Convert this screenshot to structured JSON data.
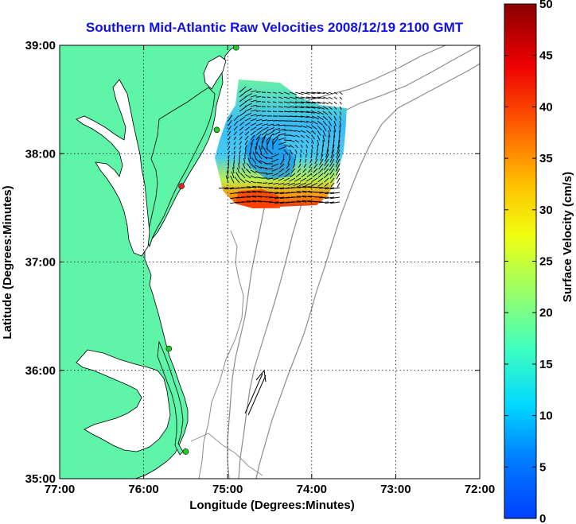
{
  "title": "Southern Mid-Atlantic Raw Velocities 2008/12/19 2100 GMT",
  "xlabel": "Longitude (Degrees:Minutes)",
  "ylabel": "Latitude (Degrees:Minutes)",
  "colorbar": {
    "label": "Surface Velocity (cm/s)",
    "min": 0,
    "max": 50,
    "ticks": [
      "0",
      "5",
      "10",
      "15",
      "20",
      "25",
      "30",
      "35",
      "40",
      "45",
      "50"
    ]
  },
  "x_ticks": [
    "77:00",
    "76:00",
    "75:00",
    "74:00",
    "73:00",
    "72:00"
  ],
  "y_ticks": [
    "39:00",
    "38:00",
    "37:00",
    "36:00",
    "35:00"
  ],
  "map": {
    "lon_range": [
      -77,
      -72
    ],
    "lat_range": [
      35,
      39
    ],
    "land_color": "#5ef5a8",
    "water_color": "#ffffff",
    "bathymetry_color": "#8c8c8c",
    "grid": "dotted"
  },
  "stations": [
    {
      "lon": -74.9,
      "lat": 38.98,
      "color": "#22cc22"
    },
    {
      "lon": -75.13,
      "lat": 38.22,
      "color": "#22cc22"
    },
    {
      "lon": -75.55,
      "lat": 37.7,
      "color": "#ee2222"
    },
    {
      "lon": -75.7,
      "lat": 36.2,
      "color": "#22cc22"
    },
    {
      "lon": -75.5,
      "lat": 35.25,
      "color": "#22cc22"
    }
  ],
  "scale_arrow": {
    "lon": [
      -74.8,
      -74.5
    ],
    "lat": [
      35.5,
      36.0
    ]
  }
}
